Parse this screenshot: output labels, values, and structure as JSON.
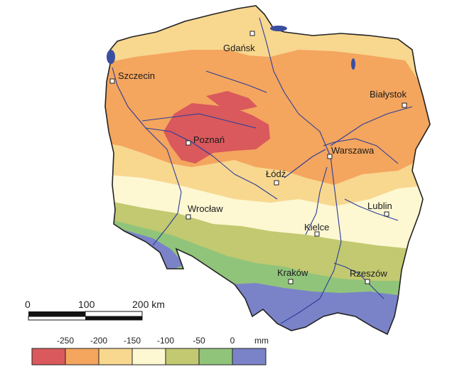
{
  "legend": {
    "unit": "mm",
    "ticks": [
      "-250",
      "-200",
      "-150",
      "-100",
      "-50",
      "0"
    ],
    "colors": [
      "#d9595c",
      "#f4a55e",
      "#f8d78f",
      "#fdf7d2",
      "#c2c970",
      "#91c47b",
      "#7a83c8"
    ]
  },
  "scale_bar": {
    "labels": [
      "0",
      "100",
      "200 km"
    ]
  },
  "cities": [
    {
      "id": "gdansk",
      "name": "Gdańsk"
    },
    {
      "id": "szczecin",
      "name": "Szczecin"
    },
    {
      "id": "bialystok",
      "name": "Białystok"
    },
    {
      "id": "poznan",
      "name": "Poznań"
    },
    {
      "id": "warszawa",
      "name": "Warszawa"
    },
    {
      "id": "lodz",
      "name": "Łódź"
    },
    {
      "id": "wroclaw",
      "name": "Wrocław"
    },
    {
      "id": "lublin",
      "name": "Lublin"
    },
    {
      "id": "kielce",
      "name": "Kielce"
    },
    {
      "id": "krakow",
      "name": "Kraków"
    },
    {
      "id": "rzeszow",
      "name": "Rzeszów"
    }
  ]
}
